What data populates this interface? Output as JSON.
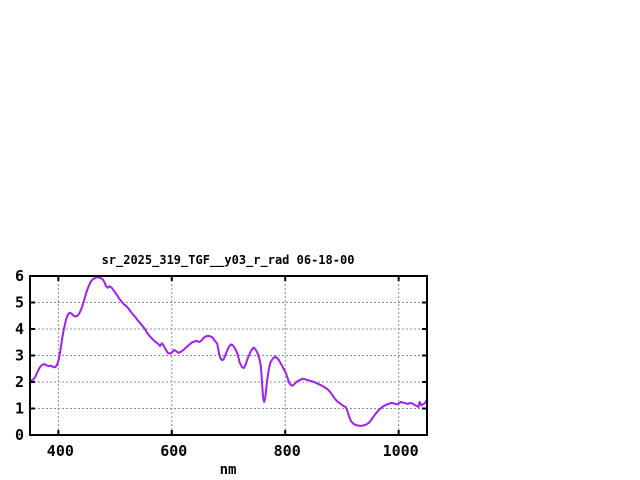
{
  "window": {
    "background": "#ffffff"
  },
  "chart_data": {
    "type": "line",
    "title": "sr_2025_319_TGF__y03_r_rad 06-18-00",
    "xlabel": "nm",
    "ylabel": "",
    "xlim": [
      350,
      1050
    ],
    "ylim": [
      0,
      6
    ],
    "x_ticks": [
      400,
      600,
      800,
      1000
    ],
    "y_ticks": [
      0,
      1,
      2,
      3,
      4,
      5,
      6
    ],
    "grid": "dashed",
    "legend": "none",
    "colors": {
      "line": "#a020f0",
      "axis": "#000000",
      "grid": "#8c8c8c",
      "text": "#000000",
      "background": "#ffffff"
    },
    "series": [
      {
        "name": "sr_2025_319_TGF__y03_r_rad",
        "points": [
          [
            350,
            2.02
          ],
          [
            353,
            2.06
          ],
          [
            356,
            2.1
          ],
          [
            359,
            2.18
          ],
          [
            362,
            2.32
          ],
          [
            365,
            2.46
          ],
          [
            368,
            2.57
          ],
          [
            371,
            2.64
          ],
          [
            374,
            2.67
          ],
          [
            377,
            2.66
          ],
          [
            380,
            2.62
          ],
          [
            383,
            2.6
          ],
          [
            386,
            2.62
          ],
          [
            389,
            2.59
          ],
          [
            392,
            2.55
          ],
          [
            395,
            2.57
          ],
          [
            398,
            2.66
          ],
          [
            400,
            2.8
          ],
          [
            402,
            3.0
          ],
          [
            404,
            3.25
          ],
          [
            406,
            3.55
          ],
          [
            408,
            3.8
          ],
          [
            410,
            4.02
          ],
          [
            412,
            4.22
          ],
          [
            414,
            4.38
          ],
          [
            416,
            4.5
          ],
          [
            418,
            4.58
          ],
          [
            420,
            4.62
          ],
          [
            422,
            4.6
          ],
          [
            424,
            4.56
          ],
          [
            427,
            4.5
          ],
          [
            430,
            4.47
          ],
          [
            433,
            4.49
          ],
          [
            436,
            4.56
          ],
          [
            439,
            4.68
          ],
          [
            442,
            4.85
          ],
          [
            445,
            5.05
          ],
          [
            448,
            5.28
          ],
          [
            451,
            5.48
          ],
          [
            454,
            5.65
          ],
          [
            457,
            5.78
          ],
          [
            460,
            5.86
          ],
          [
            463,
            5.91
          ],
          [
            466,
            5.94
          ],
          [
            470,
            5.95
          ],
          [
            474,
            5.93
          ],
          [
            478,
            5.88
          ],
          [
            481,
            5.78
          ],
          [
            484,
            5.62
          ],
          [
            487,
            5.56
          ],
          [
            490,
            5.61
          ],
          [
            493,
            5.58
          ],
          [
            496,
            5.5
          ],
          [
            500,
            5.38
          ],
          [
            504,
            5.26
          ],
          [
            508,
            5.13
          ],
          [
            512,
            5.02
          ],
          [
            516,
            4.93
          ],
          [
            520,
            4.86
          ],
          [
            524,
            4.76
          ],
          [
            528,
            4.64
          ],
          [
            532,
            4.54
          ],
          [
            536,
            4.44
          ],
          [
            540,
            4.32
          ],
          [
            544,
            4.23
          ],
          [
            548,
            4.12
          ],
          [
            552,
            4.02
          ],
          [
            556,
            3.88
          ],
          [
            560,
            3.76
          ],
          [
            564,
            3.66
          ],
          [
            568,
            3.58
          ],
          [
            572,
            3.5
          ],
          [
            576,
            3.44
          ],
          [
            579,
            3.36
          ],
          [
            583,
            3.46
          ],
          [
            586,
            3.36
          ],
          [
            590,
            3.2
          ],
          [
            593,
            3.1
          ],
          [
            596,
            3.07
          ],
          [
            600,
            3.11
          ],
          [
            604,
            3.21
          ],
          [
            608,
            3.16
          ],
          [
            612,
            3.1
          ],
          [
            616,
            3.14
          ],
          [
            620,
            3.2
          ],
          [
            624,
            3.28
          ],
          [
            628,
            3.36
          ],
          [
            632,
            3.43
          ],
          [
            636,
            3.5
          ],
          [
            640,
            3.53
          ],
          [
            644,
            3.55
          ],
          [
            648,
            3.51
          ],
          [
            652,
            3.55
          ],
          [
            656,
            3.66
          ],
          [
            660,
            3.72
          ],
          [
            664,
            3.74
          ],
          [
            668,
            3.72
          ],
          [
            672,
            3.68
          ],
          [
            676,
            3.55
          ],
          [
            680,
            3.45
          ],
          [
            683,
            3.1
          ],
          [
            686,
            2.88
          ],
          [
            689,
            2.82
          ],
          [
            692,
            2.88
          ],
          [
            696,
            3.1
          ],
          [
            700,
            3.3
          ],
          [
            704,
            3.42
          ],
          [
            708,
            3.38
          ],
          [
            712,
            3.25
          ],
          [
            716,
            3.05
          ],
          [
            720,
            2.72
          ],
          [
            724,
            2.56
          ],
          [
            727,
            2.53
          ],
          [
            730,
            2.64
          ],
          [
            734,
            2.9
          ],
          [
            738,
            3.1
          ],
          [
            742,
            3.25
          ],
          [
            745,
            3.3
          ],
          [
            748,
            3.22
          ],
          [
            751,
            3.1
          ],
          [
            754,
            2.92
          ],
          [
            757,
            2.62
          ],
          [
            759,
            2.0
          ],
          [
            761,
            1.4
          ],
          [
            763,
            1.25
          ],
          [
            765,
            1.45
          ],
          [
            768,
            2.05
          ],
          [
            771,
            2.48
          ],
          [
            774,
            2.74
          ],
          [
            778,
            2.88
          ],
          [
            782,
            2.96
          ],
          [
            786,
            2.9
          ],
          [
            790,
            2.79
          ],
          [
            794,
            2.63
          ],
          [
            798,
            2.46
          ],
          [
            801,
            2.35
          ],
          [
            804,
            2.16
          ],
          [
            807,
            1.97
          ],
          [
            810,
            1.88
          ],
          [
            813,
            1.86
          ],
          [
            816,
            1.92
          ],
          [
            820,
            2.0
          ],
          [
            824,
            2.06
          ],
          [
            828,
            2.1
          ],
          [
            832,
            2.12
          ],
          [
            836,
            2.1
          ],
          [
            840,
            2.07
          ],
          [
            844,
            2.04
          ],
          [
            848,
            2.02
          ],
          [
            852,
            1.99
          ],
          [
            856,
            1.95
          ],
          [
            860,
            1.91
          ],
          [
            864,
            1.87
          ],
          [
            868,
            1.82
          ],
          [
            872,
            1.77
          ],
          [
            876,
            1.7
          ],
          [
            880,
            1.6
          ],
          [
            884,
            1.48
          ],
          [
            888,
            1.36
          ],
          [
            892,
            1.26
          ],
          [
            896,
            1.2
          ],
          [
            900,
            1.14
          ],
          [
            904,
            1.08
          ],
          [
            907,
            1.05
          ],
          [
            910,
            0.88
          ],
          [
            913,
            0.68
          ],
          [
            916,
            0.52
          ],
          [
            920,
            0.43
          ],
          [
            924,
            0.38
          ],
          [
            928,
            0.36
          ],
          [
            932,
            0.35
          ],
          [
            936,
            0.35
          ],
          [
            940,
            0.37
          ],
          [
            944,
            0.41
          ],
          [
            948,
            0.47
          ],
          [
            952,
            0.58
          ],
          [
            956,
            0.7
          ],
          [
            960,
            0.82
          ],
          [
            964,
            0.92
          ],
          [
            968,
            1.0
          ],
          [
            972,
            1.07
          ],
          [
            976,
            1.12
          ],
          [
            980,
            1.16
          ],
          [
            984,
            1.19
          ],
          [
            988,
            1.21
          ],
          [
            992,
            1.19
          ],
          [
            996,
            1.16
          ],
          [
            1000,
            1.18
          ],
          [
            1004,
            1.25
          ],
          [
            1008,
            1.22
          ],
          [
            1012,
            1.2
          ],
          [
            1016,
            1.17
          ],
          [
            1020,
            1.21
          ],
          [
            1024,
            1.19
          ],
          [
            1028,
            1.14
          ],
          [
            1032,
            1.09
          ],
          [
            1035,
            1.06
          ],
          [
            1037,
            1.25
          ],
          [
            1040,
            1.12
          ],
          [
            1043,
            1.16
          ],
          [
            1046,
            1.2
          ],
          [
            1050,
            1.32
          ]
        ]
      }
    ]
  }
}
